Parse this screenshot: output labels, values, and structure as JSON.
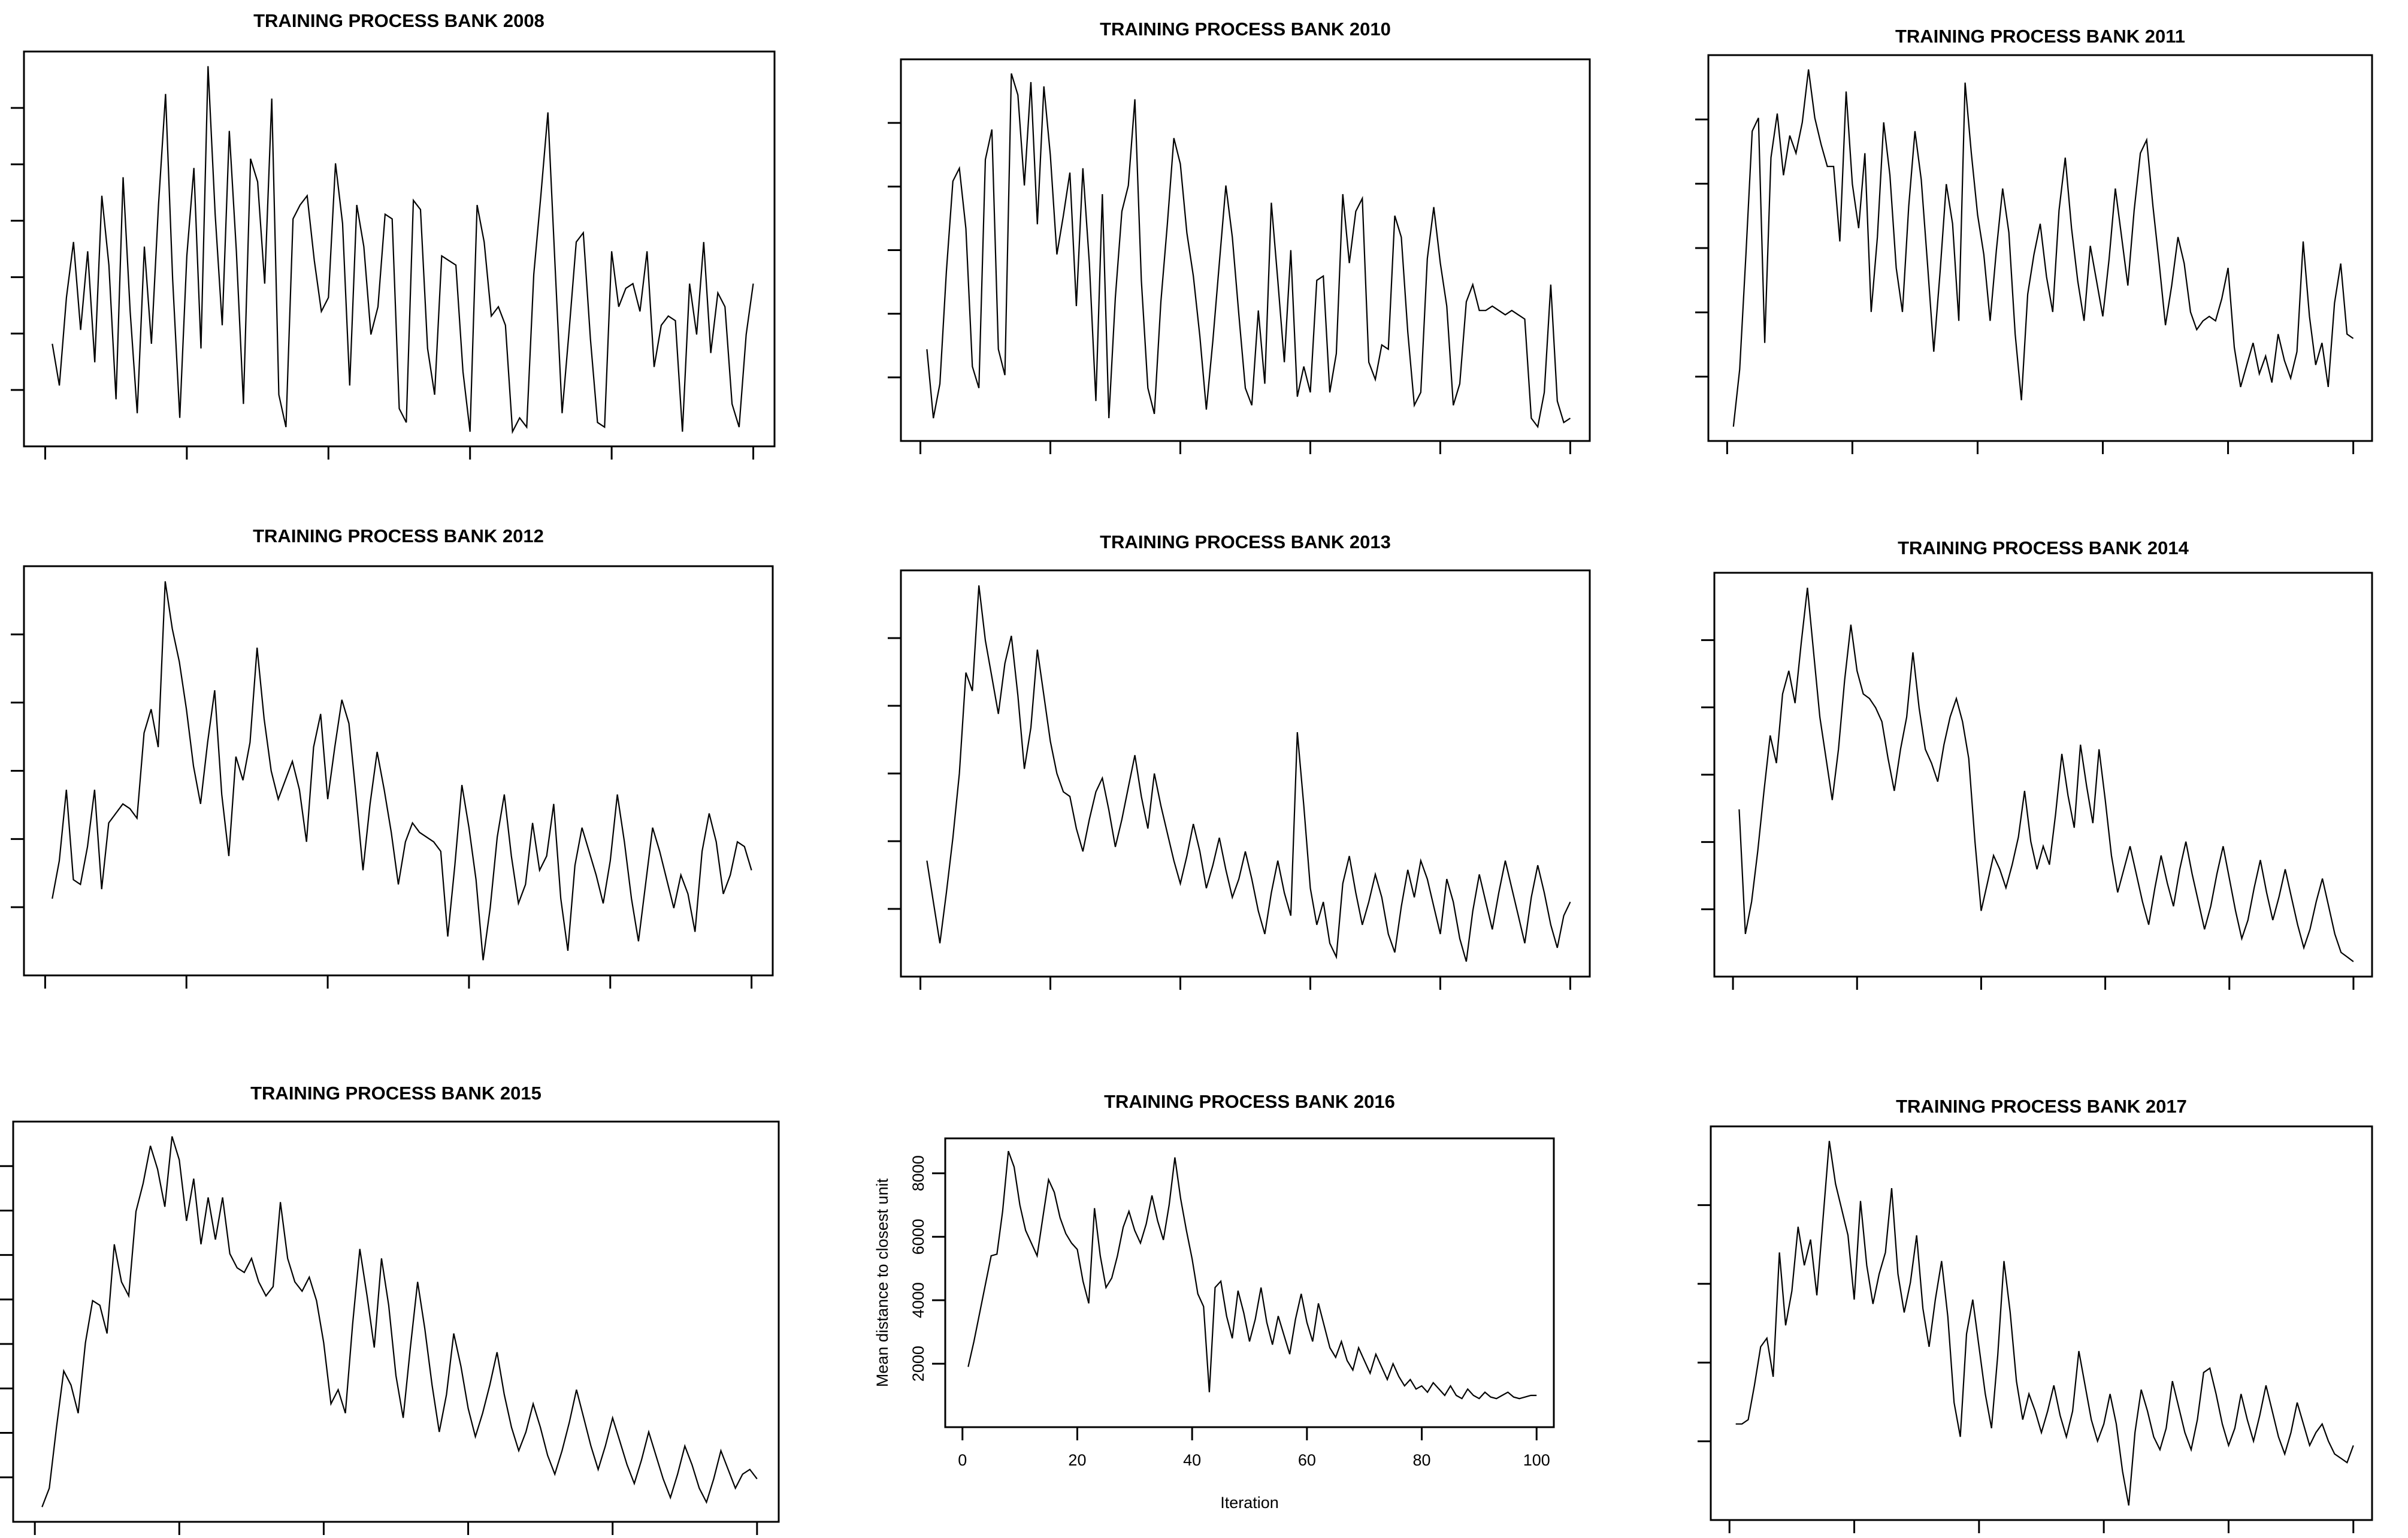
{
  "page": {
    "background": "#ffffff",
    "line_color": "#000000"
  },
  "chart_data": [
    {
      "type": "line",
      "title": "TRAINING PROCESS BANK 2008",
      "x_ticks_visible": 6,
      "y_ticks_visible": 6,
      "axis_labels_visible": false,
      "series": [
        2600,
        1700,
        3600,
        4800,
        2900,
        4600,
        2200,
        5800,
        4300,
        1400,
        6200,
        3300,
        1100,
        4700,
        2600,
        5600,
        8000,
        4000,
        1000,
        4500,
        6400,
        2500,
        8600,
        5400,
        3000,
        7200,
        4600,
        1300,
        6600,
        6100,
        3900,
        7900,
        1500,
        800,
        5300,
        5600,
        5800,
        4400,
        3300,
        3600,
        6500,
        5200,
        1700,
        5600,
        4700,
        2800,
        3400,
        5400,
        5300,
        1200,
        900,
        5700,
        5500,
        2500,
        1500,
        4500,
        4400,
        4300,
        2000,
        700,
        5600,
        4800,
        3200,
        3400,
        3000,
        700,
        1000,
        800,
        4100,
        5800,
        7600,
        4300,
        1100,
        2900,
        4800,
        5000,
        2700,
        900,
        800,
        4600,
        3400,
        3800,
        3900,
        3300,
        4600,
        2100,
        3000,
        3200,
        3100,
        700,
        3900,
        2800,
        4800,
        2400,
        3700,
        3400,
        1300,
        800,
        2800,
        3900
      ]
    },
    {
      "type": "line",
      "title": "TRAINING PROCESS BANK 2010",
      "x_ticks_visible": 6,
      "y_ticks_visible": 5,
      "axis_labels_visible": false,
      "series": [
        2500,
        900,
        1700,
        4300,
        6400,
        6700,
        5300,
        2100,
        1600,
        6900,
        7600,
        2500,
        1900,
        8900,
        8400,
        6300,
        8700,
        5400,
        8600,
        7000,
        4700,
        5600,
        6600,
        3500,
        6700,
        4500,
        1300,
        6100,
        900,
        3700,
        5700,
        6300,
        8300,
        4100,
        1600,
        1000,
        3600,
        5400,
        7400,
        6800,
        5200,
        4200,
        2800,
        1100,
        2700,
        4500,
        6300,
        5100,
        3300,
        1600,
        1200,
        3400,
        1700,
        5900,
        4100,
        2200,
        4800,
        1400,
        2100,
        1500,
        4100,
        4200,
        1500,
        2400,
        6100,
        4500,
        5700,
        6000,
        2200,
        1800,
        2600,
        2500,
        5600,
        5100,
        2900,
        1200,
        1500,
        4600,
        5800,
        4500,
        3500,
        1200,
        1700,
        3600,
        4000,
        3400,
        3400,
        3500,
        3400,
        3300,
        3400,
        3300,
        3200,
        900,
        700,
        1500,
        4000,
        1300,
        800,
        900
      ]
    },
    {
      "type": "line",
      "title": "TRAINING PROCESS BANK 2011",
      "x_ticks_visible": 6,
      "y_ticks_visible": 5,
      "axis_labels_visible": false,
      "series": [
        700,
        2000,
        4600,
        7400,
        7700,
        2600,
        6800,
        7800,
        6400,
        7300,
        6900,
        7600,
        8800,
        7700,
        7100,
        6600,
        6600,
        4900,
        8300,
        6200,
        5200,
        6900,
        3300,
        5000,
        7600,
        6400,
        4300,
        3300,
        5700,
        7400,
        6300,
        4400,
        2400,
        4200,
        6200,
        5300,
        3100,
        8500,
        6900,
        5500,
        4600,
        3100,
        4700,
        6100,
        5100,
        2800,
        1300,
        3700,
        4600,
        5300,
        4100,
        3300,
        5600,
        6800,
        5200,
        4000,
        3100,
        4800,
        4000,
        3200,
        4500,
        6100,
        5000,
        3900,
        5600,
        6900,
        7200,
        5700,
        4400,
        3000,
        3900,
        5000,
        4400,
        3300,
        2900,
        3100,
        3200,
        3100,
        3600,
        4300,
        2500,
        1600,
        2100,
        2600,
        1900,
        2300,
        1700,
        2800,
        2200,
        1800,
        2400,
        4900,
        3200,
        2100,
        2600,
        1600,
        3500,
        4400,
        2800,
        2700
      ]
    },
    {
      "type": "line",
      "title": "TRAINING PROCESS BANK 2012",
      "x_ticks_visible": 6,
      "y_ticks_visible": 5,
      "axis_labels_visible": false,
      "series": [
        2300,
        3100,
        4600,
        2700,
        2600,
        3400,
        4600,
        2500,
        3900,
        4100,
        4300,
        4200,
        4000,
        5800,
        6300,
        5500,
        9000,
        8000,
        7300,
        6300,
        5100,
        4300,
        5600,
        6700,
        4500,
        3200,
        5300,
        4800,
        5600,
        7600,
        6100,
        5000,
        4400,
        4800,
        5200,
        4600,
        3500,
        5500,
        6200,
        4400,
        5500,
        6500,
        6000,
        4500,
        2900,
        4300,
        5400,
        4600,
        3700,
        2600,
        3500,
        3900,
        3700,
        3600,
        3500,
        3300,
        1500,
        3000,
        4700,
        3800,
        2700,
        1000,
        2100,
        3600,
        4500,
        3200,
        2200,
        2600,
        3900,
        2900,
        3200,
        4300,
        2300,
        1200,
        3000,
        3800,
        3300,
        2800,
        2200,
        3100,
        4500,
        3500,
        2300,
        1400,
        2600,
        3800,
        3300,
        2700,
        2100,
        2800,
        2400,
        1600,
        3300,
        4100,
        3500,
        2400,
        2800,
        3500,
        3400,
        2900
      ]
    },
    {
      "type": "line",
      "title": "TRAINING PROCESS BANK 2013",
      "x_ticks_visible": 6,
      "y_ticks_visible": 5,
      "axis_labels_visible": false,
      "series": [
        3300,
        2400,
        1500,
        2600,
        3800,
        5200,
        7400,
        7000,
        9300,
        8100,
        7300,
        6500,
        7600,
        8200,
        6900,
        5300,
        6200,
        7900,
        6900,
        5900,
        5200,
        4800,
        4700,
        4000,
        3500,
        4200,
        4800,
        5100,
        4400,
        3600,
        4200,
        4900,
        5600,
        4700,
        4000,
        5200,
        4500,
        3900,
        3300,
        2800,
        3400,
        4100,
        3500,
        2700,
        3200,
        3800,
        3100,
        2500,
        2900,
        3500,
        2900,
        2200,
        1700,
        2600,
        3300,
        2600,
        2100,
        6100,
        4500,
        2700,
        1900,
        2400,
        1500,
        1200,
        2800,
        3400,
        2600,
        1900,
        2400,
        3000,
        2500,
        1700,
        1300,
        2300,
        3100,
        2500,
        3300,
        2900,
        2300,
        1700,
        2900,
        2400,
        1600,
        1100,
        2200,
        3000,
        2400,
        1800,
        2600,
        3300,
        2700,
        2100,
        1500,
        2500,
        3200,
        2600,
        1900,
        1400,
        2100,
        2400
      ]
    },
    {
      "type": "line",
      "title": "TRAINING PROCESS BANK 2014",
      "x_ticks_visible": 6,
      "y_ticks_visible": 5,
      "axis_labels_visible": false,
      "series": [
        4200,
        1500,
        2200,
        3300,
        4600,
        5800,
        5200,
        6700,
        7200,
        6500,
        7800,
        9000,
        7600,
        6200,
        5300,
        4400,
        5500,
        7000,
        8200,
        7200,
        6700,
        6600,
        6400,
        6100,
        5300,
        4600,
        5500,
        6200,
        7600,
        6400,
        5500,
        5200,
        4800,
        5600,
        6200,
        6600,
        6100,
        5300,
        3500,
        2000,
        2600,
        3200,
        2900,
        2500,
        3000,
        3600,
        4600,
        3500,
        2900,
        3400,
        3000,
        4100,
        5400,
        4500,
        3800,
        5600,
        4700,
        3900,
        5500,
        4400,
        3200,
        2400,
        2900,
        3400,
        2800,
        2200,
        1700,
        2500,
        3200,
        2600,
        2100,
        2900,
        3500,
        2800,
        2200,
        1600,
        2100,
        2800,
        3400,
        2700,
        2000,
        1400,
        1800,
        2500,
        3100,
        2400,
        1800,
        2300,
        2900,
        2300,
        1700,
        1200,
        1600,
        2200,
        2700,
        2100,
        1500,
        1100,
        1000,
        900
      ]
    },
    {
      "type": "line",
      "title": "TRAINING PROCESS BANK 2015",
      "x_ticks_visible": 6,
      "y_ticks_visible": 8,
      "axis_labels_visible": false,
      "series": [
        900,
        1300,
        2600,
        3800,
        3500,
        2900,
        4400,
        5300,
        5200,
        4600,
        6500,
        5700,
        5400,
        7200,
        7800,
        8600,
        8100,
        7300,
        8800,
        8300,
        7000,
        7900,
        6500,
        7500,
        6600,
        7500,
        6300,
        6000,
        5900,
        6200,
        5700,
        5400,
        5600,
        7400,
        6200,
        5700,
        5500,
        5800,
        5300,
        4400,
        3100,
        3400,
        2900,
        4800,
        6400,
        5400,
        4300,
        6200,
        5200,
        3700,
        2800,
        4300,
        5700,
        4700,
        3500,
        2500,
        3300,
        4600,
        3900,
        3000,
        2400,
        2900,
        3500,
        4200,
        3300,
        2600,
        2100,
        2500,
        3100,
        2600,
        2000,
        1600,
        2100,
        2700,
        3400,
        2800,
        2200,
        1700,
        2200,
        2800,
        2300,
        1800,
        1400,
        1900,
        2500,
        2000,
        1500,
        1100,
        1600,
        2200,
        1800,
        1300,
        1000,
        1500,
        2100,
        1700,
        1300,
        1600,
        1700,
        1500
      ]
    },
    {
      "type": "line",
      "title": "TRAINING PROCESS BANK 2016",
      "xlabel": "Iteration",
      "ylabel": "Mean distance to closest unit",
      "xticks": [
        0,
        20,
        40,
        60,
        80,
        100
      ],
      "yticks": [
        2000,
        4000,
        6000,
        8000
      ],
      "xlim": [
        0,
        100
      ],
      "ylim": [
        0,
        9100
      ],
      "axis_labels_visible": true,
      "series": [
        1900,
        2700,
        3600,
        4500,
        5400,
        5450,
        6800,
        8700,
        8200,
        7000,
        6200,
        5800,
        5400,
        6600,
        7800,
        7400,
        6600,
        6100,
        5800,
        5600,
        4600,
        3900,
        6900,
        5400,
        4400,
        4700,
        5400,
        6300,
        6800,
        6200,
        5800,
        6400,
        7300,
        6500,
        5900,
        7000,
        8500,
        7200,
        6200,
        5300,
        4200,
        3800,
        1100,
        4400,
        4600,
        3500,
        2800,
        4300,
        3600,
        2700,
        3400,
        4400,
        3300,
        2600,
        3500,
        2900,
        2300,
        3400,
        4200,
        3300,
        2700,
        3900,
        3200,
        2500,
        2200,
        2700,
        2100,
        1800,
        2500,
        2100,
        1700,
        2300,
        1900,
        1500,
        2000,
        1600,
        1300,
        1500,
        1200,
        1300,
        1100,
        1400,
        1200,
        1000,
        1300,
        1000,
        900,
        1200,
        1000,
        900,
        1100,
        950,
        900,
        1000,
        1100,
        950,
        900,
        950,
        1000,
        1000
      ]
    },
    {
      "type": "line",
      "title": "TRAINING PROCESS BANK 2017",
      "x_ticks_visible": 6,
      "y_ticks_visible": 4,
      "axis_labels_visible": false,
      "series": [
        2600,
        2600,
        2700,
        3500,
        4400,
        4600,
        3700,
        6600,
        4900,
        5700,
        7200,
        6300,
        6900,
        5600,
        7400,
        9200,
        8200,
        7600,
        7000,
        5500,
        7800,
        6300,
        5400,
        6100,
        6600,
        8100,
        6100,
        5200,
        5900,
        7000,
        5300,
        4400,
        5500,
        6400,
        5100,
        3100,
        2300,
        4700,
        5500,
        4400,
        3300,
        2500,
        4200,
        6400,
        5200,
        3600,
        2700,
        3300,
        2900,
        2400,
        2900,
        3500,
        2800,
        2300,
        2900,
        4300,
        3500,
        2700,
        2200,
        2600,
        3300,
        2600,
        1500,
        700,
        2400,
        3400,
        2900,
        2300,
        2000,
        2500,
        3600,
        3000,
        2400,
        2000,
        2700,
        3800,
        3900,
        3300,
        2600,
        2100,
        2500,
        3300,
        2700,
        2200,
        2800,
        3500,
        2900,
        2300,
        1900,
        2400,
        3100,
        2600,
        2100,
        2400,
        2600,
        2200,
        1900,
        1800,
        1700,
        2100
      ]
    }
  ]
}
